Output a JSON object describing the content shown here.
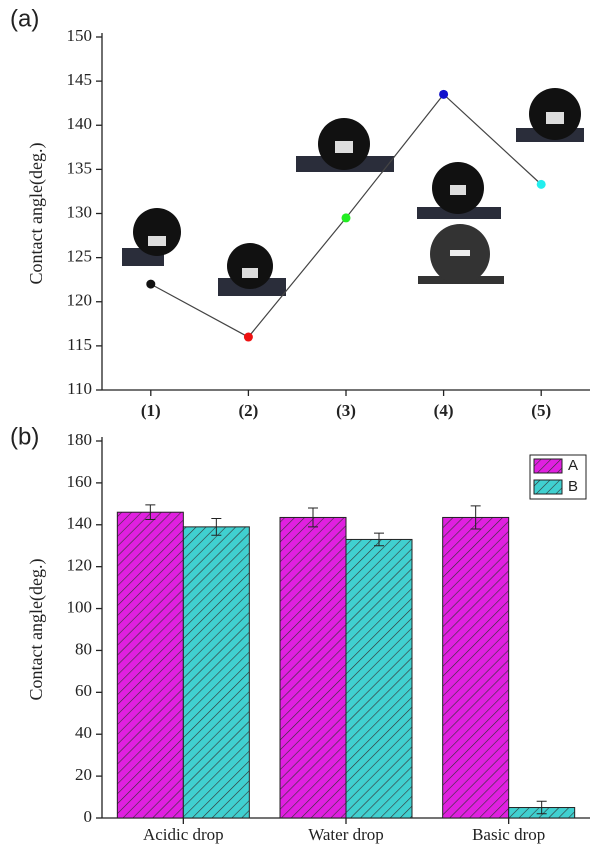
{
  "chart_data": [
    {
      "type": "line",
      "panel_label": "(a)",
      "y_label": "Contact angle(deg.)",
      "categories": [
        "(1)",
        "(2)",
        "(3)",
        "(4)",
        "(5)"
      ],
      "values": [
        122,
        116,
        129.5,
        143.5,
        133.3
      ],
      "colors": [
        "#111111",
        "#ee1111",
        "#22ee22",
        "#1111cc",
        "#22eeee"
      ],
      "line_color": "#444444",
      "ylim": [
        110,
        150
      ],
      "yticks": [
        110,
        115,
        120,
        125,
        130,
        135,
        140,
        145,
        150
      ]
    },
    {
      "type": "bar",
      "panel_label": "(b)",
      "y_label": "Contact angle(deg.)",
      "categories": [
        "Acidic drop",
        "Water drop",
        "Basic drop"
      ],
      "series": [
        {
          "name": "A",
          "color": "#e020e0",
          "values": [
            146,
            143.5,
            143.5
          ],
          "errors": [
            3.5,
            4.5,
            5.5
          ]
        },
        {
          "name": "B",
          "color": "#40d0d0",
          "values": [
            139,
            133,
            5
          ],
          "errors": [
            4,
            3,
            3
          ]
        }
      ],
      "ylim": [
        0,
        180
      ],
      "yticks": [
        0,
        20,
        40,
        60,
        80,
        100,
        120,
        140,
        160,
        180
      ],
      "legend": "top-right"
    }
  ]
}
